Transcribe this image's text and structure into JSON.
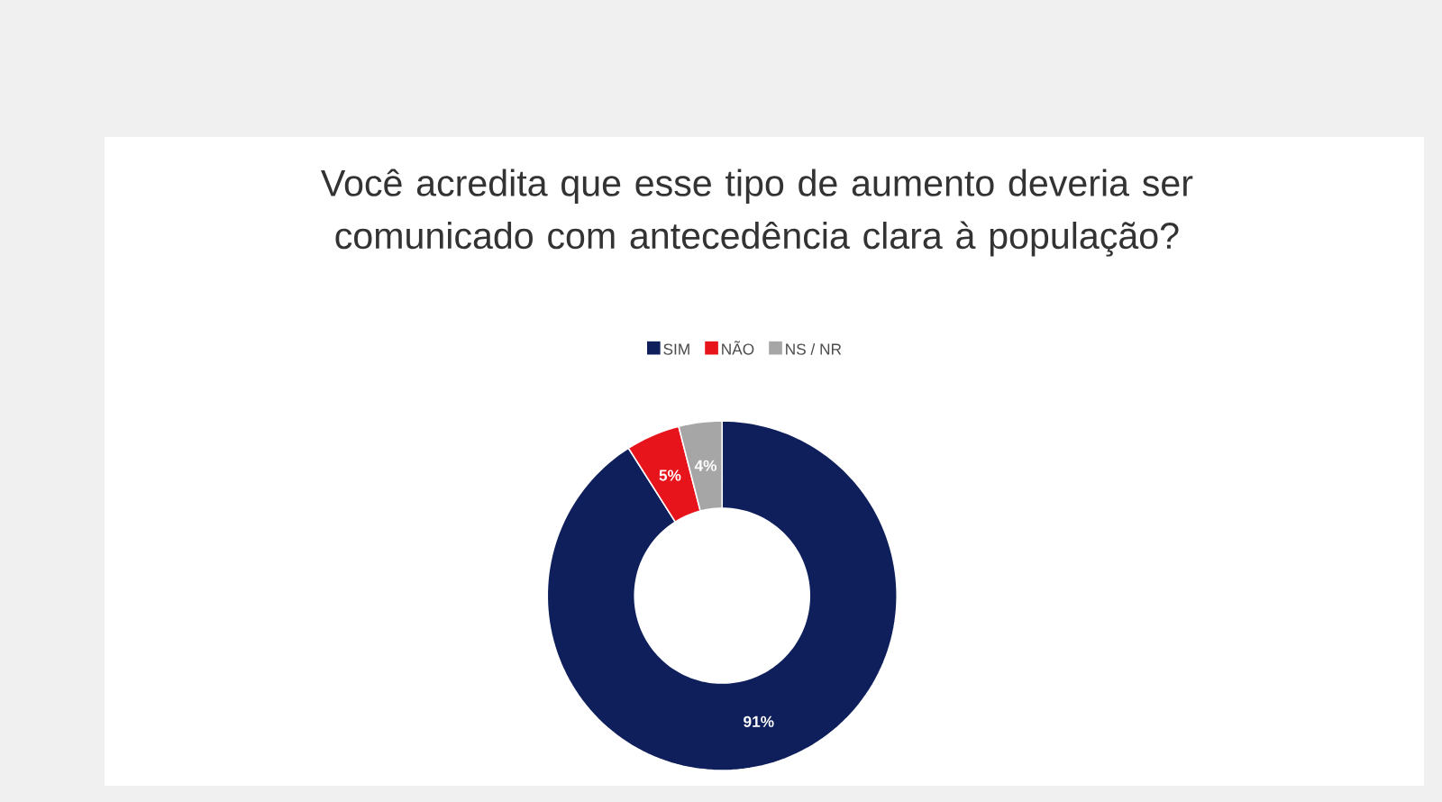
{
  "chart_data": {
    "type": "donut",
    "title": "Você acredita que esse tipo de aumento deveria ser comunicado com antecedência clara à população?",
    "categories": [
      "SIM",
      "NÃO",
      "NS / NR"
    ],
    "values": [
      91,
      5,
      4
    ],
    "colors": [
      "#0f1f5c",
      "#e8141c",
      "#a6a6a6"
    ],
    "value_labels": [
      "91%",
      "5%",
      "4%"
    ],
    "legend": "top"
  }
}
